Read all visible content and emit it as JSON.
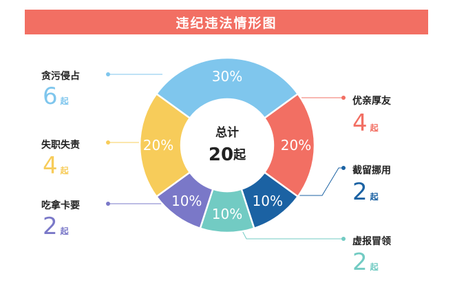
{
  "title": "违纪违法情形图",
  "colors": {
    "title_bar": "#f26f63",
    "center_fill": "#ffffff",
    "slice_label": "#ffffff",
    "leader_line": "#aeb8d4"
  },
  "center": {
    "label": "总计",
    "value": "20",
    "unit": "起"
  },
  "chart_data": {
    "type": "pie",
    "style": "donut",
    "total": 20,
    "unit": "起",
    "slices": [
      {
        "name": "贪污侵占",
        "count": 6,
        "percent": 30,
        "label": "30%",
        "color": "#7fc6ed"
      },
      {
        "name": "优亲厚友",
        "count": 4,
        "percent": 20,
        "label": "20%",
        "color": "#f26f63"
      },
      {
        "name": "截留挪用",
        "count": 2,
        "percent": 10,
        "label": "10%",
        "color": "#1b62a3"
      },
      {
        "name": "虚报冒领",
        "count": 2,
        "percent": 10,
        "label": "10%",
        "color": "#72cbc3"
      },
      {
        "name": "吃拿卡要",
        "count": 2,
        "percent": 10,
        "label": "10%",
        "color": "#7a78c8"
      },
      {
        "name": "失职失责",
        "count": 4,
        "percent": 20,
        "label": "20%",
        "color": "#f7cc5a"
      }
    ]
  }
}
